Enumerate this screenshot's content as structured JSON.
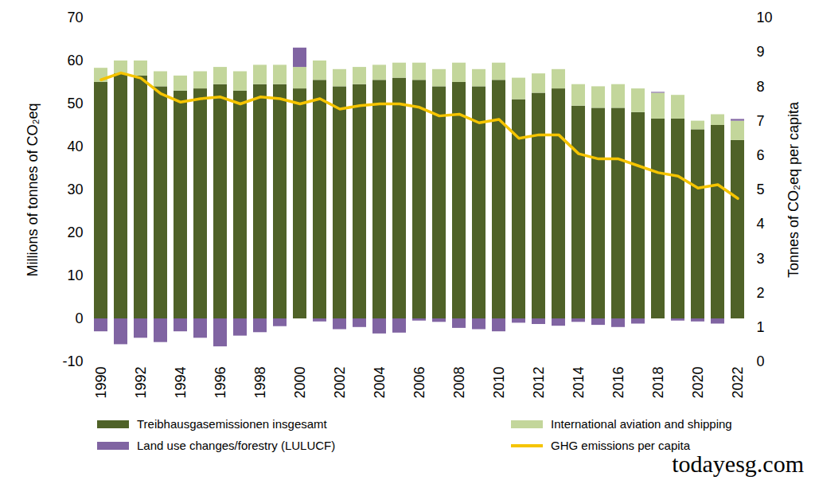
{
  "chart_data": {
    "type": "bar",
    "stacked": true,
    "ylabel": "Millions of tonnes of CO₂eq",
    "y2label": "Tonnes of CO₂eq per capita",
    "x": [
      1990,
      1991,
      1992,
      1993,
      1994,
      1995,
      1996,
      1997,
      1998,
      1999,
      2000,
      2001,
      2002,
      2003,
      2004,
      2005,
      2006,
      2007,
      2008,
      2009,
      2010,
      2011,
      2012,
      2013,
      2014,
      2015,
      2016,
      2017,
      2018,
      2019,
      2020,
      2021,
      2022
    ],
    "xticks": [
      1990,
      1992,
      1994,
      1996,
      1998,
      2000,
      2002,
      2004,
      2006,
      2008,
      2010,
      2012,
      2014,
      2016,
      2018,
      2020,
      2022
    ],
    "ylim": [
      -10,
      70
    ],
    "yticks": [
      -10,
      0,
      10,
      20,
      30,
      40,
      50,
      60,
      70
    ],
    "y2lim": [
      0,
      10
    ],
    "y2ticks": [
      0,
      1,
      2,
      3,
      4,
      5,
      6,
      7,
      8,
      9,
      10
    ],
    "grid": false,
    "legend": "bottom",
    "annotations": [
      "todayesg.com"
    ],
    "series": [
      {
        "name": "Treibhausgasemissionen insgesamt",
        "color": "#4f6228",
        "values": [
          55,
          57,
          56.5,
          54,
          53,
          53.5,
          54.5,
          53,
          54.5,
          54.5,
          53.5,
          55.5,
          54,
          54.5,
          55.5,
          56,
          55.5,
          54,
          55,
          54,
          55.5,
          51,
          52.5,
          53.5,
          49.5,
          49,
          49,
          48,
          46.5,
          46.5,
          44,
          45,
          41.5
        ]
      },
      {
        "name": "International aviation and shipping",
        "color": "#c3d69b",
        "values": [
          3.3,
          3,
          3.5,
          3.5,
          3.5,
          4,
          4,
          4.5,
          4.5,
          4.5,
          5,
          4.5,
          4,
          4,
          3.5,
          3.5,
          4,
          4,
          4.5,
          4,
          4,
          5,
          4.5,
          4.5,
          5,
          5,
          5.5,
          5.5,
          6,
          5.5,
          2,
          2.5,
          4.5
        ]
      },
      {
        "name": "Land use changes/forestry (LULUCF)",
        "color": "#8064a2",
        "values": [
          -3,
          -6,
          -4.5,
          -5.5,
          -3,
          -4.5,
          -6.5,
          -4,
          -3.2,
          -1.8,
          4.5,
          -0.7,
          -2.5,
          -2,
          -3.5,
          -3.3,
          -0.5,
          -0.8,
          -2.2,
          -2.5,
          -3,
          -1,
          -1.3,
          -1.7,
          -0.8,
          -1.5,
          -2,
          -1.2,
          0.2,
          -0.5,
          -0.7,
          -1.2,
          0.4
        ]
      },
      {
        "name": "GHG emissions per capita",
        "color": "#f5c400",
        "type": "line",
        "axis": "y2",
        "values": [
          8.2,
          8.4,
          8.25,
          7.8,
          7.55,
          7.65,
          7.7,
          7.5,
          7.7,
          7.65,
          7.5,
          7.65,
          7.35,
          7.45,
          7.5,
          7.5,
          7.4,
          7.15,
          7.2,
          6.95,
          7.05,
          6.5,
          6.6,
          6.6,
          6.05,
          5.9,
          5.9,
          5.7,
          5.5,
          5.4,
          5.05,
          5.15,
          4.75
        ]
      }
    ]
  }
}
